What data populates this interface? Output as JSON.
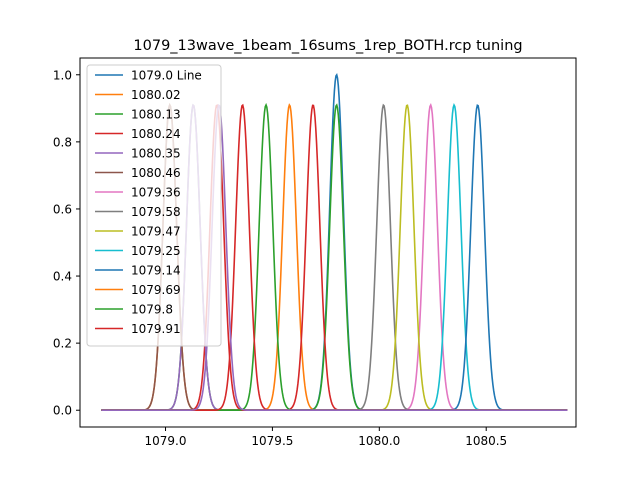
{
  "chart_data": {
    "type": "line",
    "title": "1079_13wave_1beam_16sums_1rep_BOTH.rcp tuning",
    "xlabel": "",
    "ylabel": "",
    "xlim": [
      1078.6,
      1080.92
    ],
    "ylim": [
      -0.05,
      1.05
    ],
    "x_range": [
      1078.7,
      1080.88
    ],
    "grid": false,
    "legend_position": "upper left",
    "xticks": [
      1079.0,
      1079.5,
      1080.0,
      1080.5
    ],
    "xtick_labels": [
      "1079.0",
      "1079.5",
      "1080.0",
      "1080.5"
    ],
    "yticks": [
      0.0,
      0.2,
      0.4,
      0.6,
      0.8,
      1.0
    ],
    "ytick_labels": [
      "0.0",
      "0.2",
      "0.4",
      "0.6",
      "0.8",
      "1.0"
    ],
    "series": [
      {
        "name": "1079.0 Line",
        "center": 1079.8,
        "peak": 1.0,
        "sigma": 0.032,
        "color": "#1f77b4"
      },
      {
        "name": "1080.02",
        "center": 1079.02,
        "peak": 0.91,
        "sigma": 0.032,
        "color": "#ff7f0e"
      },
      {
        "name": "1080.13",
        "center": 1079.13,
        "peak": 0.91,
        "sigma": 0.032,
        "color": "#2ca02c"
      },
      {
        "name": "1080.24",
        "center": 1079.24,
        "peak": 0.91,
        "sigma": 0.032,
        "color": "#d62728"
      },
      {
        "name": "1080.35",
        "center": 1079.13,
        "peak": 0.91,
        "sigma": 0.032,
        "color": "#9467bd"
      },
      {
        "name": "1080.46",
        "center": 1079.02,
        "peak": 0.91,
        "sigma": 0.032,
        "color": "#8c564b"
      },
      {
        "name": "1079.36",
        "center": 1080.24,
        "peak": 0.91,
        "sigma": 0.032,
        "color": "#e377c2"
      },
      {
        "name": "1079.58",
        "center": 1080.02,
        "peak": 0.91,
        "sigma": 0.032,
        "color": "#7f7f7f"
      },
      {
        "name": "1079.47",
        "center": 1080.13,
        "peak": 0.91,
        "sigma": 0.032,
        "color": "#bcbd22"
      },
      {
        "name": "1079.25",
        "center": 1080.35,
        "peak": 0.91,
        "sigma": 0.032,
        "color": "#17becf"
      },
      {
        "name": "1079.14",
        "center": 1080.46,
        "peak": 0.91,
        "sigma": 0.032,
        "color": "#1f77b4"
      },
      {
        "name": "1079.69",
        "center": 1079.58,
        "peak": 0.91,
        "sigma": 0.032,
        "color": "#ff7f0e"
      },
      {
        "name": "1079.8",
        "center": 1079.8,
        "peak": 0.91,
        "sigma": 0.032,
        "color": "#2ca02c"
      },
      {
        "name": "1079.91",
        "center": 1079.69,
        "peak": 0.91,
        "sigma": 0.032,
        "color": "#d62728"
      },
      {
        "name": "",
        "center": 1079.47,
        "peak": 0.91,
        "sigma": 0.032,
        "color": "#2ca02c"
      },
      {
        "name": "",
        "center": 1079.36,
        "peak": 0.91,
        "sigma": 0.032,
        "color": "#d62728"
      },
      {
        "name": "",
        "center": 1079.25,
        "peak": 0.91,
        "sigma": 0.032,
        "color": "#9467bd"
      }
    ]
  }
}
